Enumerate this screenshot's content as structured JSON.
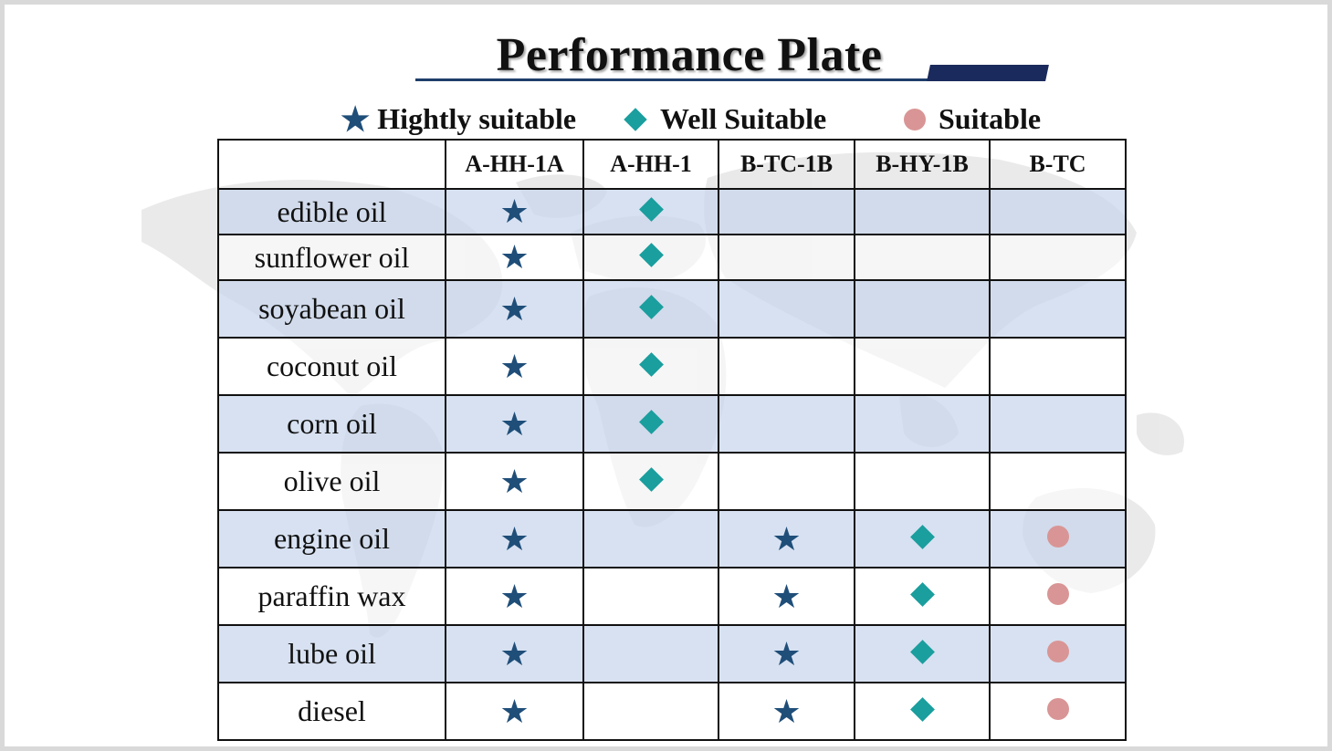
{
  "title": "Performance Plate",
  "legend": [
    {
      "symbol": "star",
      "label": "Hightly suitable"
    },
    {
      "symbol": "diamond",
      "label": "Well Suitable"
    },
    {
      "symbol": "circle",
      "label": "Suitable"
    }
  ],
  "colors": {
    "star": "#1f4e79",
    "diamond": "#1a9e9e",
    "circle": "#d99595",
    "row_shade": "#c8d6ec",
    "title_accent": "#1b2a5c"
  },
  "table": {
    "columns": [
      "A-HH-1A",
      "A-HH-1",
      "B-TC-1B",
      "B-HY-1B",
      "B-TC"
    ],
    "rows": [
      {
        "name": "edible oil",
        "marks": [
          "star",
          "diamond",
          "",
          "",
          ""
        ]
      },
      {
        "name": "sunflower oil",
        "marks": [
          "star",
          "diamond",
          "",
          "",
          ""
        ]
      },
      {
        "name": "soyabean oil",
        "marks": [
          "star",
          "diamond",
          "",
          "",
          ""
        ]
      },
      {
        "name": "coconut oil",
        "marks": [
          "star",
          "diamond",
          "",
          "",
          ""
        ]
      },
      {
        "name": "corn oil",
        "marks": [
          "star",
          "diamond",
          "",
          "",
          ""
        ]
      },
      {
        "name": "olive oil",
        "marks": [
          "star",
          "diamond",
          "",
          "",
          ""
        ]
      },
      {
        "name": "engine oil",
        "marks": [
          "star",
          "",
          "star",
          "diamond",
          "circle"
        ]
      },
      {
        "name": "paraffin wax",
        "marks": [
          "star",
          "",
          "star",
          "diamond",
          "circle"
        ]
      },
      {
        "name": "lube oil",
        "marks": [
          "star",
          "",
          "star",
          "diamond",
          "circle"
        ]
      },
      {
        "name": "diesel",
        "marks": [
          "star",
          "",
          "star",
          "diamond",
          "circle"
        ]
      }
    ]
  }
}
